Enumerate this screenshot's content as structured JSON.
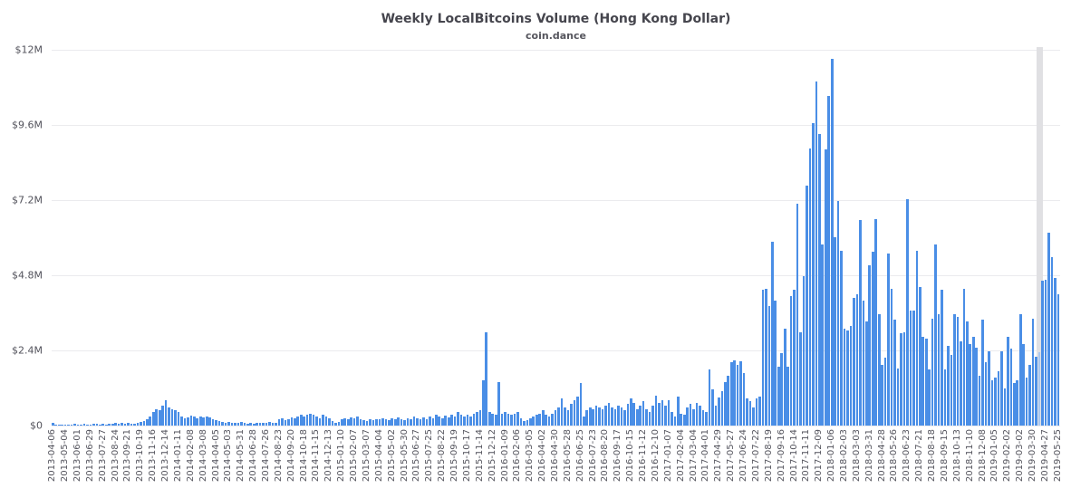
{
  "colors": {
    "bar": "#4a8ee6",
    "bar_highlight": "#abc7ee",
    "highlight_band": "#e0e0e3",
    "grid": "#ebebee",
    "axis_text": "#53535c",
    "title_text": "#45454d",
    "subtitle_text": "#55555d"
  },
  "chart_data": {
    "type": "bar",
    "title": "Weekly LocalBitcoins Volume (Hong Kong Dollar)",
    "subtitle": "coin.dance",
    "xlabel": "",
    "ylabel": "",
    "grid": "horizontal",
    "legend": "none",
    "y_max_m": 12,
    "y_ticks": [
      {
        "label": "$0",
        "value_m": 0
      },
      {
        "label": "$2.4M",
        "value_m": 2.4
      },
      {
        "label": "$4.8M",
        "value_m": 4.8
      },
      {
        "label": "$7.2M",
        "value_m": 7.2
      },
      {
        "label": "$9.6M",
        "value_m": 9.6
      },
      {
        "label": "$12M",
        "value_m": 12
      }
    ],
    "x_label_step": 4,
    "x_tick_labels": [
      "2013-04-06",
      "2013-05-04",
      "2013-06-01",
      "2013-06-29",
      "2013-07-27",
      "2013-08-24",
      "2013-09-21",
      "2013-10-19",
      "2013-11-16",
      "2013-12-14",
      "2014-01-11",
      "2014-02-08",
      "2014-03-08",
      "2014-04-05",
      "2014-05-03",
      "2014-05-31",
      "2014-06-28",
      "2014-07-26",
      "2014-08-23",
      "2014-09-20",
      "2014-10-18",
      "2014-11-15",
      "2014-12-13",
      "2015-01-10",
      "2015-02-07",
      "2015-03-07",
      "2015-04-04",
      "2015-05-02",
      "2015-05-30",
      "2015-06-27",
      "2015-07-25",
      "2015-08-22",
      "2015-09-19",
      "2015-10-17",
      "2015-11-14",
      "2015-12-12",
      "2016-01-09",
      "2016-02-06",
      "2016-03-05",
      "2016-04-02",
      "2016-04-30",
      "2016-05-28",
      "2016-06-25",
      "2016-07-23",
      "2016-08-20",
      "2016-09-17",
      "2016-10-15",
      "2016-11-12",
      "2016-12-10",
      "2017-01-07",
      "2017-02-04",
      "2017-03-04",
      "2017-04-01",
      "2017-04-29",
      "2017-05-27",
      "2017-06-24",
      "2017-07-22",
      "2017-08-19",
      "2017-09-16",
      "2017-10-14",
      "2017-11-11",
      "2017-12-09",
      "2018-01-06",
      "2018-02-03",
      "2018-03-03",
      "2018-03-31",
      "2018-04-28",
      "2018-05-26",
      "2018-06-23",
      "2018-07-21",
      "2018-08-18",
      "2018-09-15",
      "2018-10-13",
      "2018-11-10",
      "2018-12-08",
      "2019-01-05",
      "2019-02-02",
      "2019-03-02",
      "2019-03-30",
      "2019-04-27",
      "2019-05-25"
    ],
    "values_m": [
      0.1,
      0.03,
      0.02,
      0.03,
      0.04,
      0.03,
      0.02,
      0.05,
      0.04,
      0.03,
      0.05,
      0.04,
      0.03,
      0.05,
      0.06,
      0.04,
      0.05,
      0.04,
      0.06,
      0.05,
      0.08,
      0.07,
      0.1,
      0.06,
      0.09,
      0.07,
      0.06,
      0.08,
      0.12,
      0.15,
      0.2,
      0.3,
      0.42,
      0.52,
      0.49,
      0.64,
      0.81,
      0.58,
      0.52,
      0.49,
      0.43,
      0.29,
      0.23,
      0.26,
      0.31,
      0.28,
      0.24,
      0.3,
      0.26,
      0.29,
      0.27,
      0.21,
      0.18,
      0.15,
      0.12,
      0.1,
      0.12,
      0.1,
      0.08,
      0.1,
      0.12,
      0.08,
      0.06,
      0.08,
      0.07,
      0.09,
      0.08,
      0.1,
      0.09,
      0.11,
      0.1,
      0.08,
      0.19,
      0.24,
      0.17,
      0.19,
      0.27,
      0.24,
      0.29,
      0.34,
      0.29,
      0.34,
      0.38,
      0.34,
      0.29,
      0.24,
      0.34,
      0.29,
      0.24,
      0.14,
      0.1,
      0.12,
      0.19,
      0.24,
      0.21,
      0.27,
      0.24,
      0.29,
      0.21,
      0.17,
      0.14,
      0.19,
      0.16,
      0.21,
      0.19,
      0.24,
      0.21,
      0.17,
      0.24,
      0.19,
      0.26,
      0.21,
      0.17,
      0.24,
      0.19,
      0.29,
      0.24,
      0.19,
      0.26,
      0.21,
      0.29,
      0.24,
      0.34,
      0.29,
      0.24,
      0.31,
      0.26,
      0.34,
      0.29,
      0.43,
      0.34,
      0.29,
      0.34,
      0.29,
      0.38,
      0.43,
      0.48,
      1.45,
      2.99,
      0.43,
      0.38,
      0.34,
      1.4,
      0.38,
      0.43,
      0.38,
      0.34,
      0.39,
      0.43,
      0.24,
      0.14,
      0.17,
      0.24,
      0.29,
      0.34,
      0.39,
      0.48,
      0.34,
      0.29,
      0.39,
      0.48,
      0.58,
      0.87,
      0.58,
      0.48,
      0.68,
      0.82,
      0.92,
      1.35,
      0.29,
      0.48,
      0.58,
      0.53,
      0.63,
      0.58,
      0.53,
      0.63,
      0.72,
      0.58,
      0.53,
      0.63,
      0.58,
      0.48,
      0.68,
      0.87,
      0.72,
      0.53,
      0.63,
      0.78,
      0.53,
      0.43,
      0.63,
      0.96,
      0.72,
      0.82,
      0.63,
      0.82,
      0.44,
      0.29,
      0.92,
      0.39,
      0.34,
      0.58,
      0.68,
      0.53,
      0.72,
      0.63,
      0.48,
      0.44,
      1.78,
      1.16,
      0.65,
      0.9,
      1.1,
      1.4,
      1.6,
      2.02,
      2.07,
      1.95,
      2.05,
      1.69,
      0.87,
      0.77,
      0.58,
      0.87,
      0.92,
      4.34,
      4.38,
      3.81,
      5.88,
      4.0,
      1.88,
      2.31,
      3.08,
      1.88,
      4.14,
      4.33,
      7.08,
      2.99,
      4.77,
      7.66,
      8.86,
      9.65,
      10.98,
      9.3,
      5.78,
      8.81,
      10.52,
      11.7,
      6.02,
      7.18,
      5.59,
      3.08,
      3.03,
      3.18,
      4.09,
      4.19,
      6.55,
      4.0,
      3.32,
      5.11,
      5.54,
      6.6,
      3.56,
      1.93,
      2.17,
      5.49,
      4.38,
      3.37,
      1.83,
      2.94,
      2.99,
      7.24,
      3.66,
      3.66,
      5.59,
      4.43,
      2.84,
      2.79,
      1.78,
      3.42,
      5.78,
      3.56,
      4.33,
      1.78,
      2.55,
      2.26,
      3.56,
      3.47,
      2.7,
      4.38,
      3.32,
      2.6,
      2.84,
      2.5,
      1.59,
      3.37,
      2.02,
      2.36,
      1.45,
      1.54,
      1.73,
      2.36,
      1.2,
      2.84,
      2.46,
      1.35,
      1.45,
      3.56,
      2.6,
      1.54,
      1.93,
      3.42,
      2.2,
      2.33,
      4.62,
      4.67,
      6.16,
      5.39,
      4.72,
      4.19
    ],
    "highlight_index": 314,
    "highlight_date": "2019-04-13"
  }
}
